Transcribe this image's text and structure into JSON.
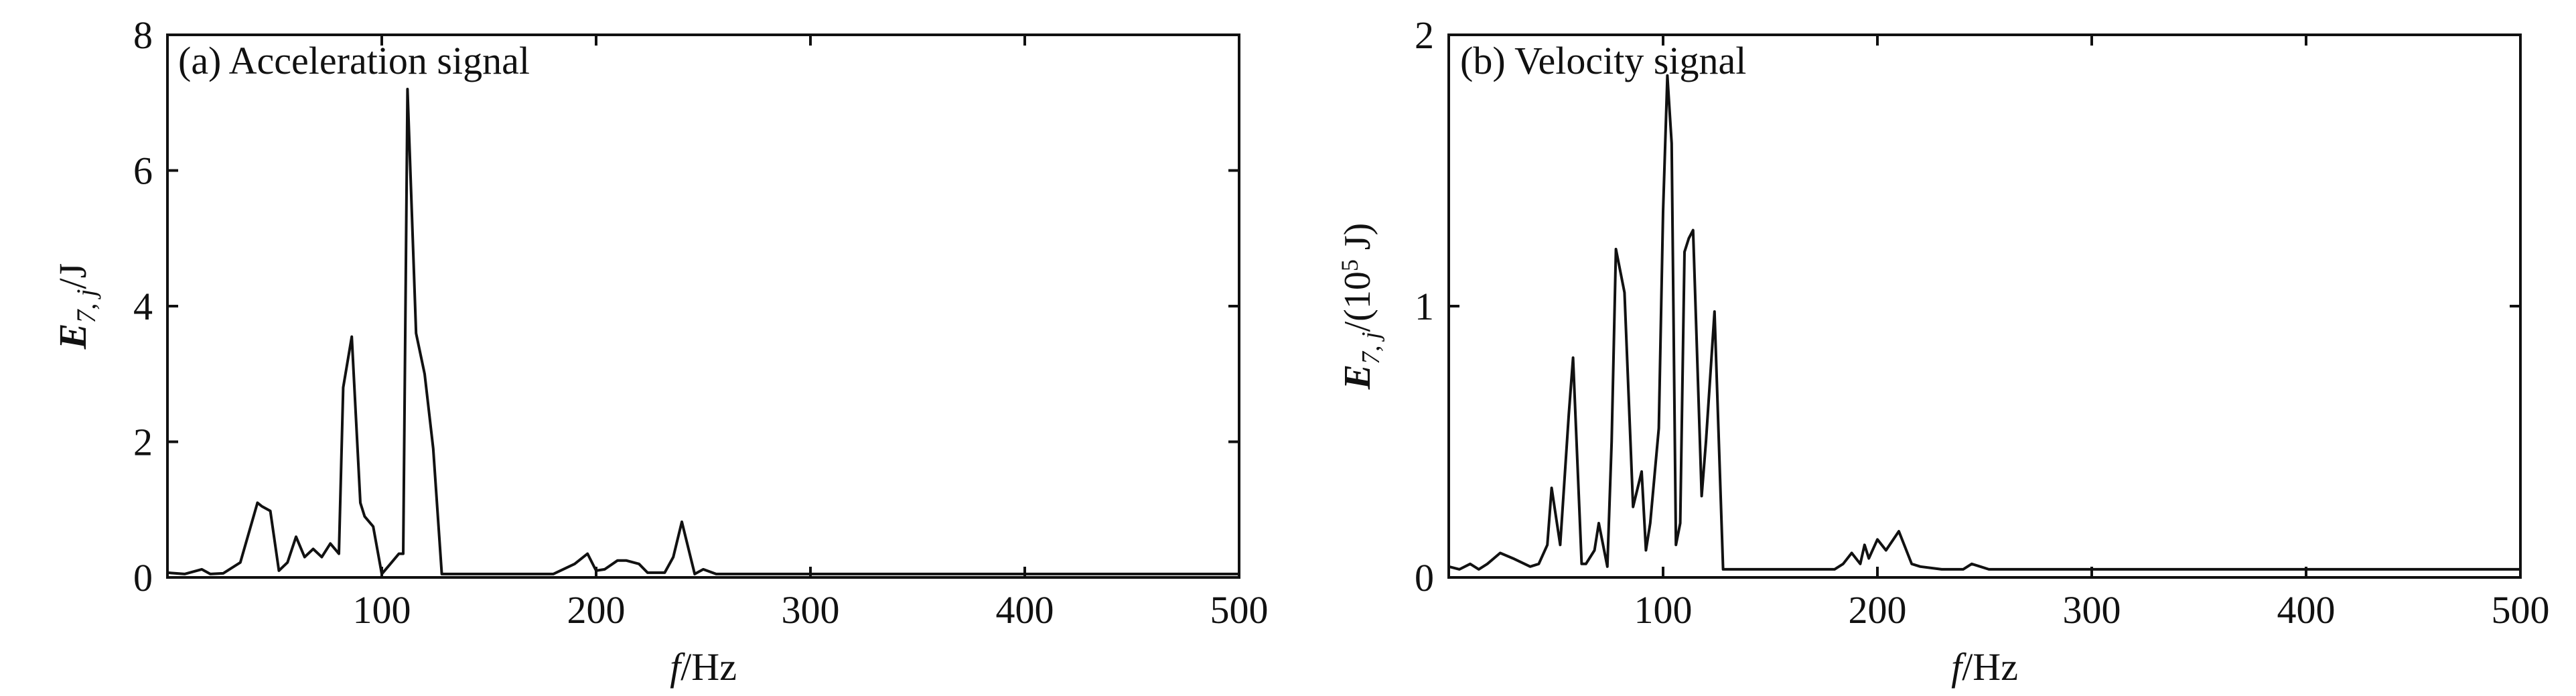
{
  "chart_data": [
    {
      "type": "line",
      "annotation": "(a) Acceleration signal",
      "xlabel_italic": "f",
      "xlabel_rest": "/Hz",
      "ylabel_main": "E",
      "ylabel_sub": "7, j",
      "ylabel_unit": "/J",
      "xlim": [
        0,
        500
      ],
      "ylim": [
        0,
        8
      ],
      "xticks": [
        100,
        200,
        300,
        400,
        500
      ],
      "yticks": [
        0,
        2,
        4,
        6,
        8
      ],
      "grid": false,
      "line_color": "#111111",
      "x": [
        0,
        8,
        16,
        20,
        26,
        34,
        42,
        44,
        48,
        52,
        56,
        60,
        64,
        68,
        72,
        76,
        80,
        82,
        86,
        90,
        92,
        96,
        100,
        104,
        108,
        110,
        112,
        116,
        120,
        124,
        128,
        134,
        140,
        150,
        160,
        170,
        180,
        190,
        196,
        200,
        204,
        210,
        214,
        220,
        224,
        232,
        236,
        240,
        246,
        250,
        256,
        260,
        300,
        350,
        400,
        450,
        500
      ],
      "y": [
        0.07,
        0.05,
        0.12,
        0.05,
        0.06,
        0.22,
        1.1,
        1.05,
        0.98,
        0.1,
        0.22,
        0.6,
        0.3,
        0.42,
        0.3,
        0.5,
        0.35,
        2.8,
        3.55,
        1.1,
        0.9,
        0.75,
        0.05,
        0.2,
        0.35,
        0.35,
        7.2,
        3.6,
        3.0,
        1.9,
        0.05,
        0.05,
        0.05,
        0.05,
        0.05,
        0.05,
        0.05,
        0.2,
        0.35,
        0.1,
        0.12,
        0.25,
        0.25,
        0.2,
        0.07,
        0.07,
        0.3,
        0.82,
        0.05,
        0.12,
        0.05,
        0.05,
        0.05,
        0.05,
        0.05,
        0.05,
        0.05
      ]
    },
    {
      "type": "line",
      "annotation": "(b) Velocity signal",
      "xlabel_italic": "f",
      "xlabel_rest": "/Hz",
      "ylabel_main": "E",
      "ylabel_sub": "7, j",
      "ylabel_unit": "/(10",
      "ylabel_sup": "5",
      "ylabel_tail": " J)",
      "xlim": [
        0,
        500
      ],
      "ylim": [
        0,
        2
      ],
      "xticks": [
        100,
        200,
        300,
        400,
        500
      ],
      "yticks": [
        0,
        1,
        2
      ],
      "grid": false,
      "line_color": "#111111",
      "x": [
        0,
        5,
        10,
        14,
        18,
        24,
        30,
        38,
        42,
        46,
        48,
        52,
        56,
        58,
        62,
        64,
        68,
        70,
        74,
        76,
        78,
        82,
        86,
        90,
        92,
        94,
        98,
        100,
        102,
        104,
        106,
        108,
        110,
        112,
        114,
        118,
        120,
        124,
        128,
        140,
        160,
        180,
        184,
        188,
        192,
        194,
        196,
        200,
        204,
        210,
        216,
        220,
        230,
        240,
        244,
        248,
        252,
        300,
        350,
        400,
        450,
        500
      ],
      "y": [
        0.04,
        0.03,
        0.05,
        0.03,
        0.05,
        0.09,
        0.07,
        0.04,
        0.05,
        0.12,
        0.33,
        0.12,
        0.6,
        0.81,
        0.05,
        0.05,
        0.1,
        0.2,
        0.04,
        0.5,
        1.21,
        1.05,
        0.26,
        0.39,
        0.1,
        0.2,
        0.55,
        1.35,
        1.85,
        1.6,
        0.12,
        0.2,
        1.2,
        1.25,
        1.28,
        0.3,
        0.5,
        0.98,
        0.03,
        0.03,
        0.03,
        0.03,
        0.05,
        0.09,
        0.05,
        0.12,
        0.07,
        0.14,
        0.1,
        0.17,
        0.05,
        0.04,
        0.03,
        0.03,
        0.05,
        0.04,
        0.03,
        0.03,
        0.03,
        0.03,
        0.03,
        0.03
      ]
    }
  ]
}
